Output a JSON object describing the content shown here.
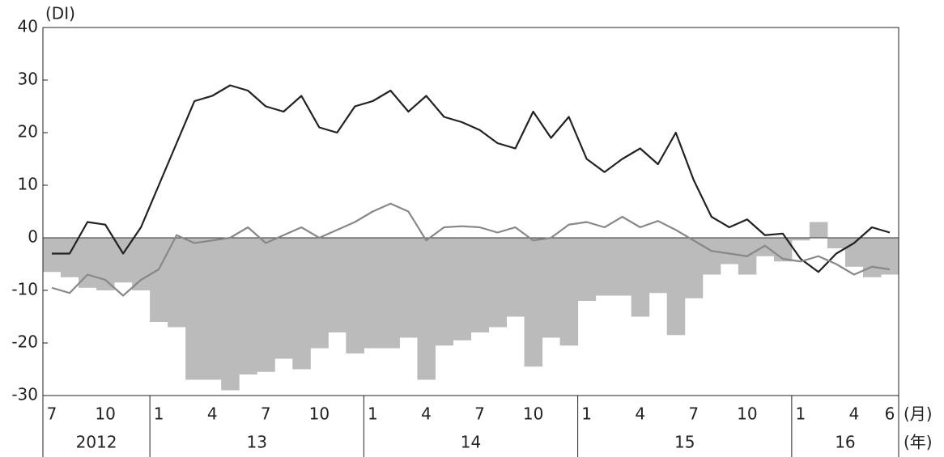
{
  "chart_data": {
    "type": "combo",
    "y_unit_label": "(DI)",
    "x_unit_label": "(月)",
    "year_unit_label": "(年)",
    "categories": [
      "7",
      null,
      null,
      "10",
      null,
      null,
      "1",
      null,
      null,
      "4",
      null,
      null,
      "7",
      null,
      null,
      "10",
      null,
      null,
      "1",
      null,
      null,
      "4",
      null,
      null,
      "7",
      null,
      null,
      "10",
      null,
      null,
      "1",
      null,
      null,
      "4",
      null,
      null,
      "7",
      null,
      null,
      "10",
      null,
      null,
      "1",
      null,
      null,
      "4",
      null,
      "6"
    ],
    "year_labels": [
      "2012",
      "13",
      "14",
      "15",
      "16"
    ],
    "series": [
      {
        "type": "bar",
        "color": "#bbbbbb",
        "values": [
          -6.5,
          -7.5,
          -9.5,
          -10,
          -8.5,
          -10,
          -16,
          -17,
          -27,
          -27,
          -29,
          -26,
          -25.5,
          -23,
          -25,
          -21,
          -18,
          -22,
          -21,
          -21,
          -19,
          -27,
          -20.5,
          -19.5,
          -18,
          -17,
          -15,
          -24.5,
          -19,
          -20.5,
          -12,
          -11,
          -11,
          -15,
          -10.5,
          -18.5,
          -11.5,
          -7,
          -5,
          -7,
          -3.5,
          -4.5,
          -0.5,
          3,
          -2,
          -5.5,
          -7.5,
          -7
        ]
      },
      {
        "type": "line",
        "color": "#222222",
        "values": [
          -3,
          -3,
          3,
          2.5,
          -3,
          2,
          10,
          18,
          26,
          27,
          29,
          28,
          25,
          24,
          27,
          21,
          20,
          25,
          26,
          28,
          24,
          27,
          23,
          22,
          20.5,
          18,
          17,
          24,
          19,
          23,
          15,
          12.5,
          15,
          17,
          14,
          20,
          11,
          4,
          2,
          3.5,
          0.5,
          0.8,
          -4,
          -6.5,
          -3,
          -1,
          2,
          1
        ]
      },
      {
        "type": "line",
        "color": "#888888",
        "values": [
          -9.5,
          -10.5,
          -7,
          -8,
          -11,
          -8,
          -6,
          0.5,
          -1,
          -0.5,
          0,
          2,
          -1,
          0.5,
          2,
          0,
          1.5,
          3,
          5,
          6.5,
          5,
          -0.5,
          2,
          2.2,
          2,
          1,
          2,
          -0.5,
          0,
          2.5,
          3,
          2,
          4,
          2,
          3.2,
          1.5,
          -0.5,
          -2.5,
          -3,
          -3.5,
          -1.5,
          -4,
          -4.5,
          -3.5,
          -5,
          -7,
          -5.5,
          -6
        ]
      }
    ],
    "ylim": [
      -30,
      40
    ],
    "yticks": [
      -30,
      -20,
      -10,
      0,
      10,
      20,
      30,
      40
    ]
  }
}
